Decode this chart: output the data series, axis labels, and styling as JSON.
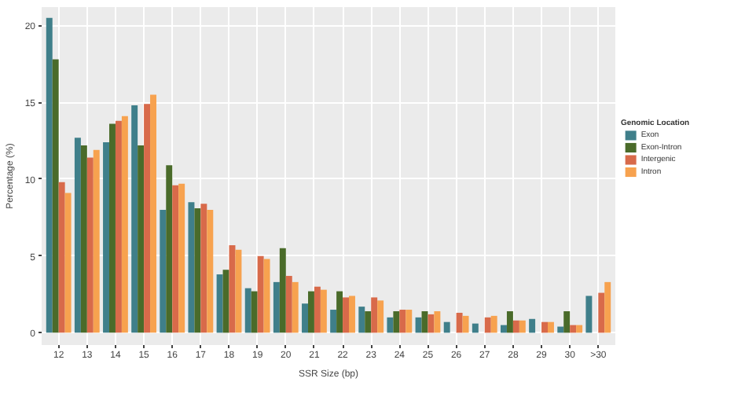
{
  "chart_data": {
    "type": "bar",
    "xlabel": "SSR Size (bp)",
    "ylabel": "Percentage (%)",
    "legend_title": "Genomic Location",
    "categories": [
      "12",
      "13",
      "14",
      "15",
      "16",
      "17",
      "18",
      "19",
      "20",
      "21",
      "22",
      "23",
      "24",
      "25",
      "26",
      "27",
      "28",
      "29",
      "30",
      ">30"
    ],
    "series": [
      {
        "name": "Exon",
        "color": "#3f7f8a",
        "values": [
          20.5,
          12.7,
          12.4,
          14.8,
          8.0,
          8.5,
          3.8,
          2.9,
          3.3,
          1.9,
          1.5,
          1.7,
          1.0,
          1.0,
          0.7,
          0.6,
          0.5,
          0.9,
          0.4,
          2.4
        ]
      },
      {
        "name": "Exon-Intron",
        "color": "#4a6b2a",
        "values": [
          17.8,
          12.2,
          13.6,
          12.2,
          10.9,
          8.1,
          4.1,
          2.7,
          5.5,
          2.7,
          2.7,
          1.4,
          1.4,
          1.4,
          null,
          null,
          1.4,
          null,
          1.4,
          null
        ]
      },
      {
        "name": "Intergenic",
        "color": "#d86a4a",
        "values": [
          9.8,
          11.4,
          13.8,
          14.9,
          9.6,
          8.4,
          5.7,
          5.0,
          3.7,
          3.0,
          2.3,
          2.3,
          1.5,
          1.2,
          1.3,
          1.0,
          0.8,
          0.7,
          0.5,
          2.6
        ]
      },
      {
        "name": "Intron",
        "color": "#f7a24f",
        "values": [
          9.1,
          11.9,
          14.1,
          15.5,
          9.7,
          8.0,
          5.4,
          4.8,
          3.3,
          2.8,
          2.4,
          2.1,
          1.5,
          1.4,
          1.1,
          1.1,
          0.8,
          0.7,
          0.5,
          3.3
        ]
      }
    ],
    "ylim": [
      -0.8,
      21.2
    ],
    "yticks": [
      0,
      5,
      10,
      15,
      20
    ],
    "grid": true,
    "legend": "right"
  }
}
